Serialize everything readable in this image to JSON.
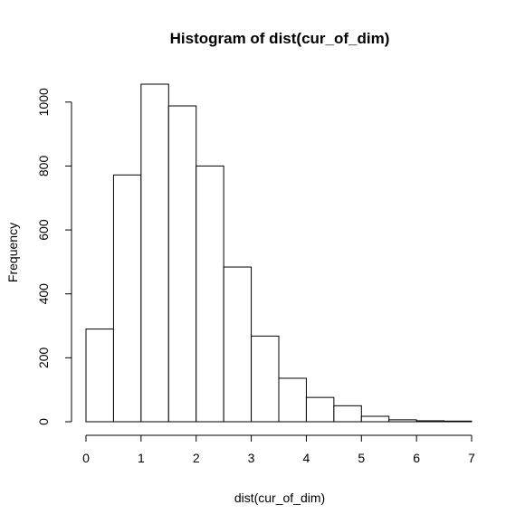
{
  "chart_data": {
    "type": "bar",
    "title": "Histogram of dist(cur_of_dim)",
    "xlabel": "dist(cur_of_dim)",
    "ylabel": "Frequency",
    "bin_edges": [
      0,
      0.5,
      1,
      1.5,
      2,
      2.5,
      3,
      3.5,
      4,
      4.5,
      5,
      5.5,
      6,
      6.5,
      7
    ],
    "values": [
      290,
      772,
      1056,
      988,
      800,
      484,
      268,
      136,
      76,
      50,
      17,
      6,
      3,
      2
    ],
    "xlim": [
      0,
      7
    ],
    "ylim": [
      0,
      1056
    ],
    "x_ticks": [
      0,
      1,
      2,
      3,
      4,
      5,
      6,
      7
    ],
    "x_tick_labels": [
      "0",
      "1",
      "2",
      "3",
      "4",
      "5",
      "6",
      "7"
    ],
    "y_ticks": [
      0,
      200,
      400,
      600,
      800,
      1000
    ],
    "y_tick_labels": [
      "0",
      "200",
      "400",
      "600",
      "800",
      "1000"
    ],
    "grid": false,
    "bar_fill": "#ffffff",
    "bar_stroke": "#000000"
  }
}
